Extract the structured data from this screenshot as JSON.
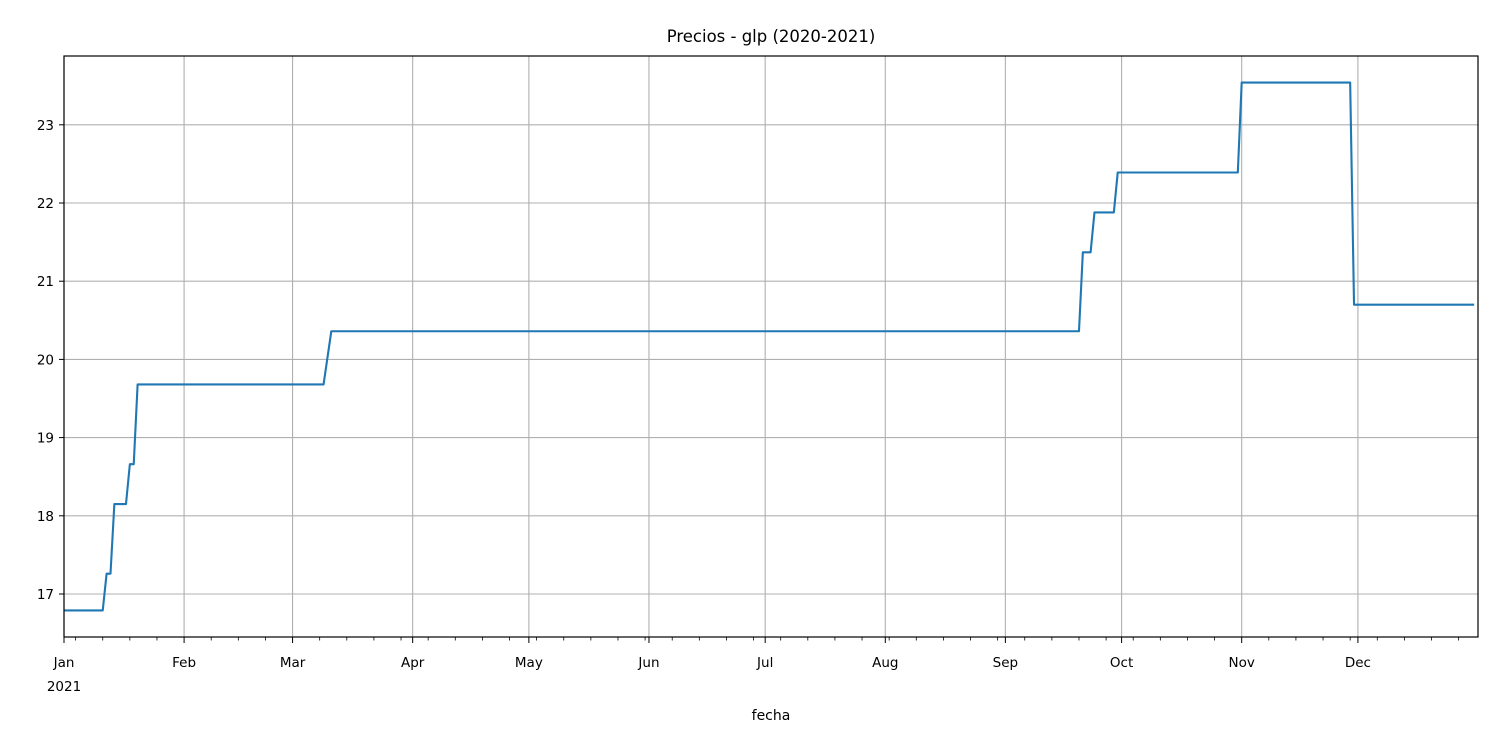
{
  "chart_data": {
    "type": "line",
    "title": "Precios - glp (2020-2021)",
    "xlabel": "fecha",
    "ylabel": "",
    "x_range": [
      "2021-01-01",
      "2021-12-31"
    ],
    "ylim": [
      16.45,
      23.88
    ],
    "grid": true,
    "legend": "none",
    "colors": {
      "line": "#1f77b4",
      "grid": "#b0b0b0"
    },
    "x_ticks": [
      {
        "date": "2021-01-01",
        "label": "Jan",
        "sublabel": "2021"
      },
      {
        "date": "2021-02-01",
        "label": "Feb"
      },
      {
        "date": "2021-03-01",
        "label": "Mar"
      },
      {
        "date": "2021-04-01",
        "label": "Apr"
      },
      {
        "date": "2021-05-01",
        "label": "May"
      },
      {
        "date": "2021-06-01",
        "label": "Jun"
      },
      {
        "date": "2021-07-01",
        "label": "Jul"
      },
      {
        "date": "2021-08-01",
        "label": "Aug"
      },
      {
        "date": "2021-09-01",
        "label": "Sep"
      },
      {
        "date": "2021-10-01",
        "label": "Oct"
      },
      {
        "date": "2021-11-01",
        "label": "Nov"
      },
      {
        "date": "2021-12-01",
        "label": "Dec"
      }
    ],
    "y_ticks": [
      17,
      18,
      19,
      20,
      21,
      22,
      23
    ],
    "series": [
      {
        "points": [
          [
            "2021-01-01",
            16.79
          ],
          [
            "2021-01-11",
            16.79
          ],
          [
            "2021-01-12",
            17.26
          ],
          [
            "2021-01-13",
            17.26
          ],
          [
            "2021-01-14",
            18.15
          ],
          [
            "2021-01-17",
            18.15
          ],
          [
            "2021-01-18",
            18.66
          ],
          [
            "2021-01-19",
            18.66
          ],
          [
            "2021-01-20",
            19.68
          ],
          [
            "2021-03-09",
            19.68
          ],
          [
            "2021-03-11",
            20.36
          ],
          [
            "2021-09-20",
            20.36
          ],
          [
            "2021-09-21",
            21.37
          ],
          [
            "2021-09-23",
            21.37
          ],
          [
            "2021-09-24",
            21.88
          ],
          [
            "2021-09-29",
            21.88
          ],
          [
            "2021-09-30",
            22.39
          ],
          [
            "2021-10-31",
            22.39
          ],
          [
            "2021-11-01",
            23.54
          ],
          [
            "2021-11-29",
            23.54
          ],
          [
            "2021-11-30",
            20.7
          ],
          [
            "2021-12-31",
            20.7
          ]
        ]
      }
    ]
  }
}
